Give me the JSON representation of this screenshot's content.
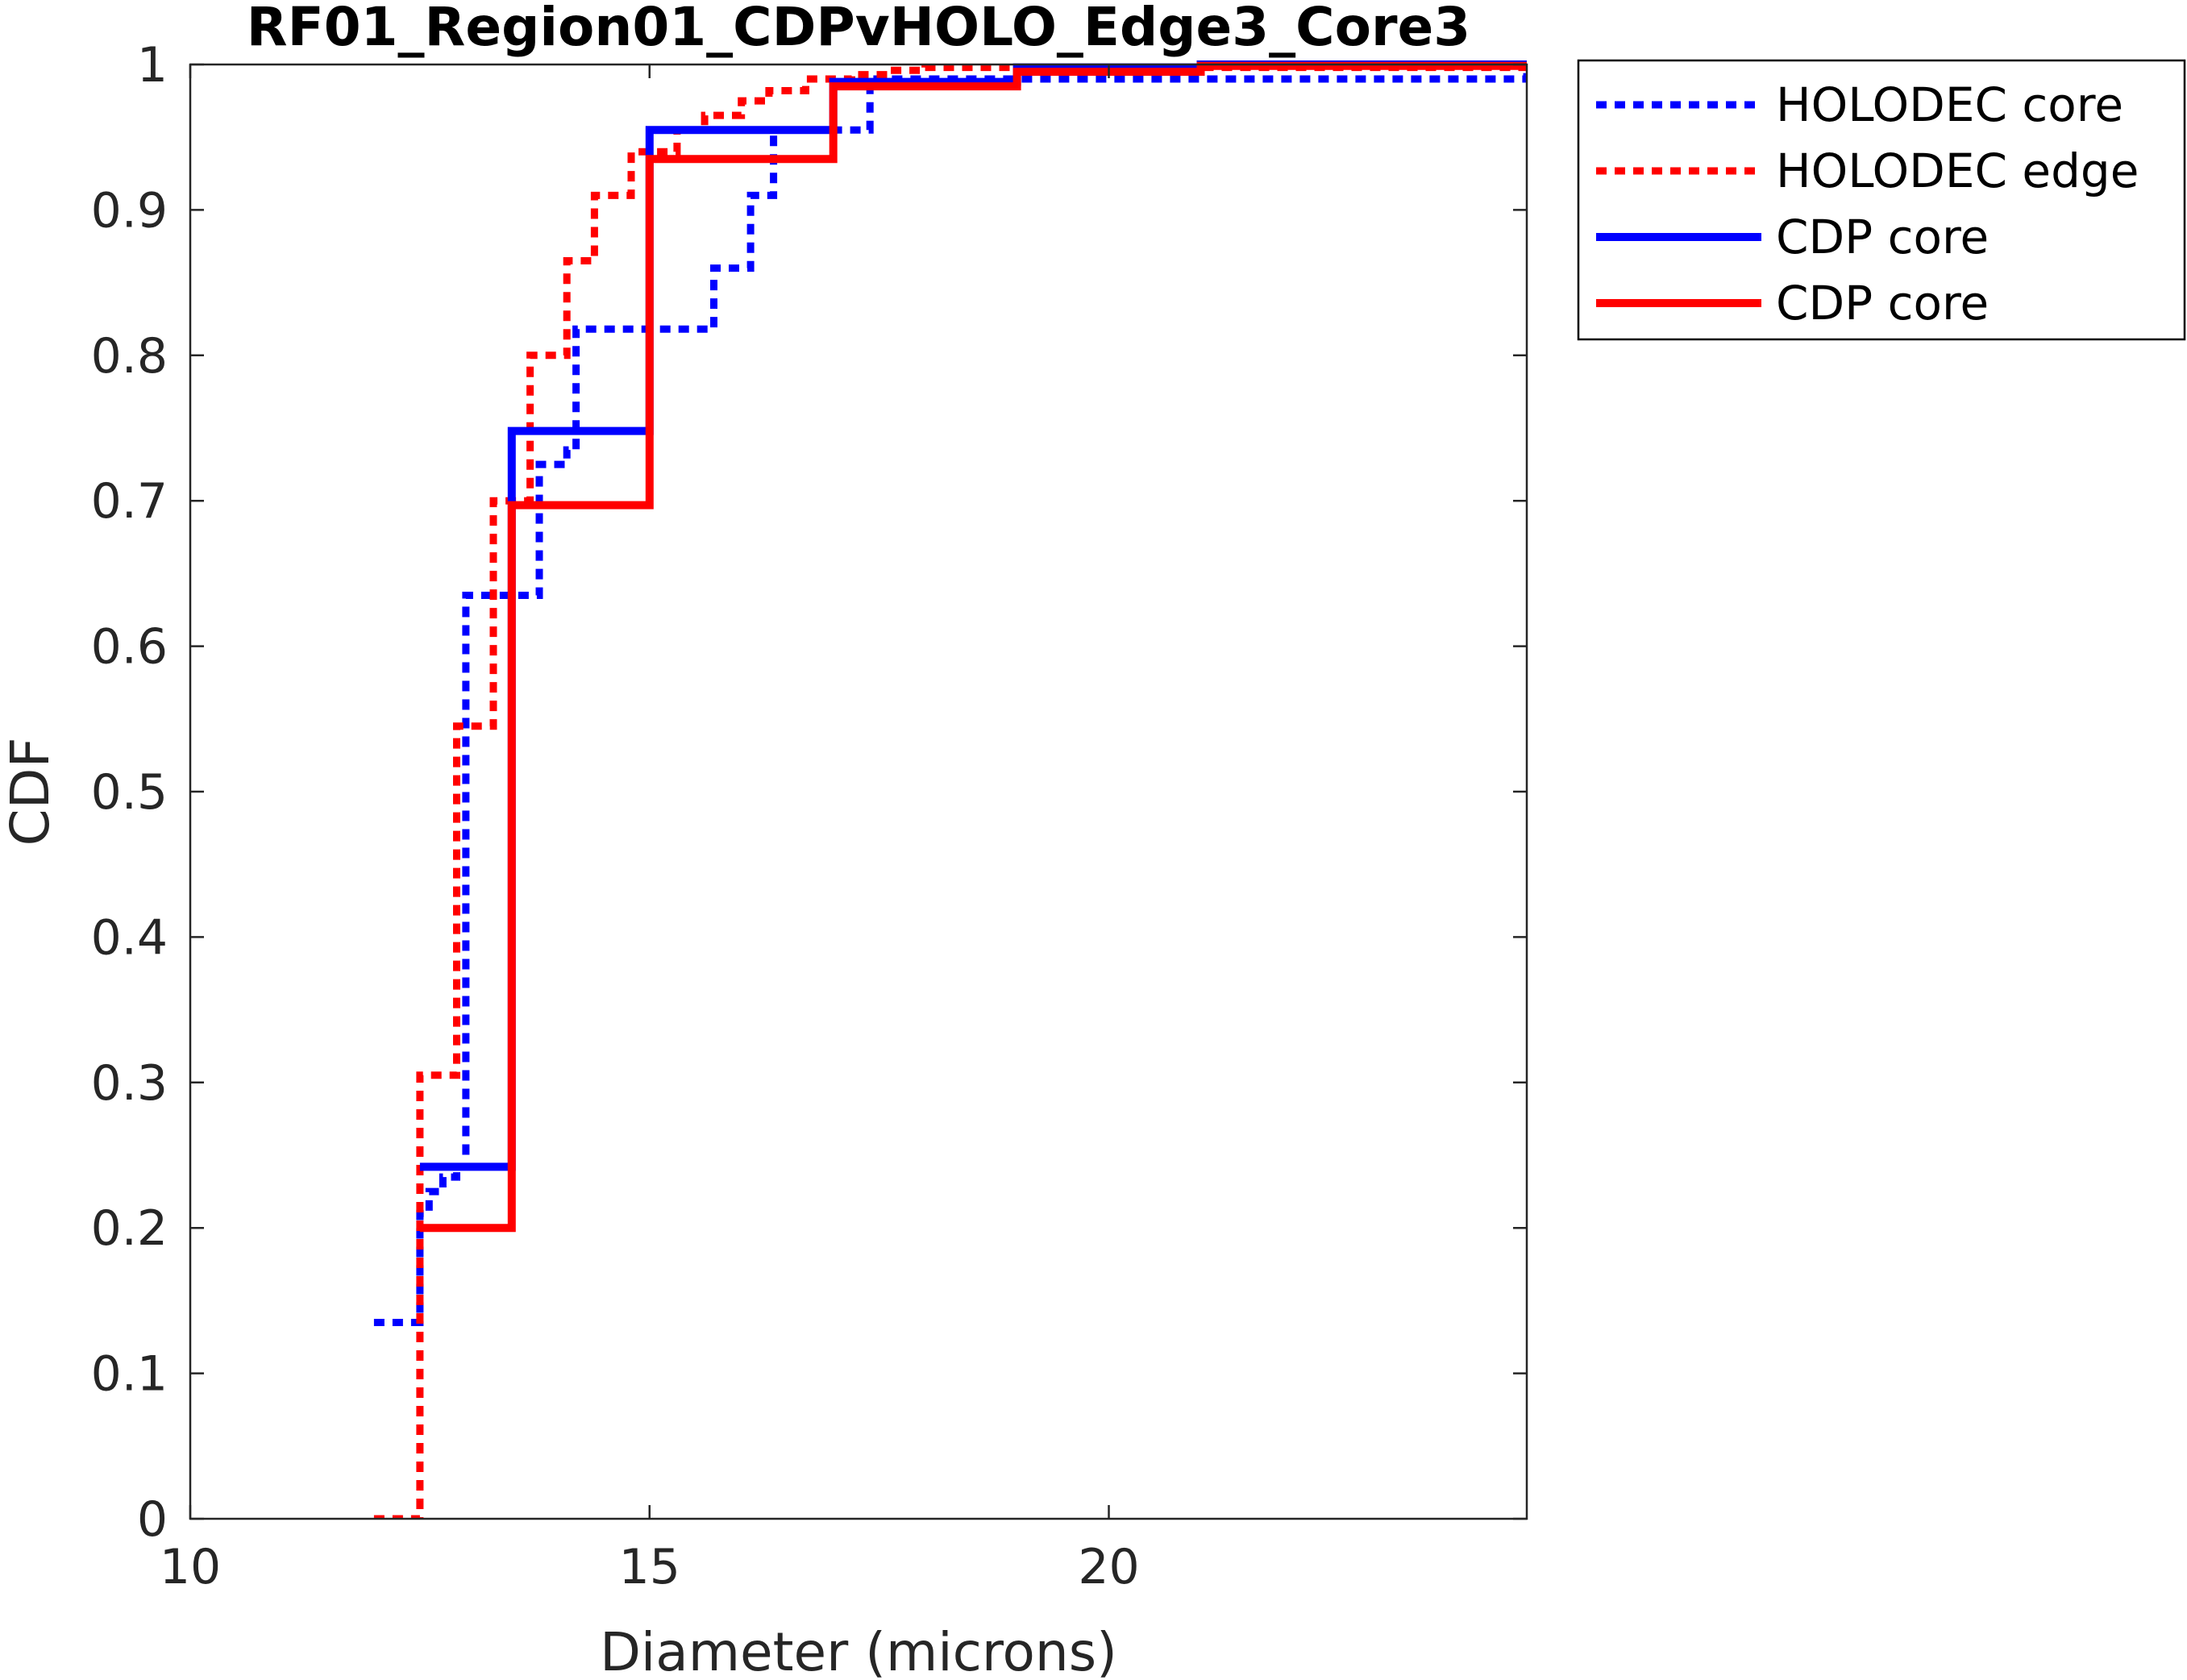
{
  "chart_data": {
    "type": "line",
    "title": "RF01_Region01_CDPvHOLO_Edge3_Core3",
    "xlabel": "Diameter (microns)",
    "ylabel": "CDF",
    "xlim": [
      10,
      24.55
    ],
    "ylim": [
      0,
      1
    ],
    "xticks": [
      "10",
      "15",
      "20"
    ],
    "xtick_values": [
      10,
      15,
      20
    ],
    "yticks": [
      "0",
      "0.1",
      "0.2",
      "0.3",
      "0.4",
      "0.5",
      "0.6",
      "0.7",
      "0.8",
      "0.9",
      "1"
    ],
    "ytick_values": [
      0,
      0.1,
      0.2,
      0.3,
      0.4,
      0.5,
      0.6,
      0.7,
      0.8,
      0.9,
      1
    ],
    "grid": false,
    "legend_position": "outside-top-right",
    "series": [
      {
        "name": "HOLODEC core",
        "color": "#0000ff",
        "style": "dotted",
        "step": true,
        "x": [
          12.0,
          12.5,
          12.6,
          12.75,
          12.9,
          13.0,
          13.7,
          13.8,
          14.1,
          14.2,
          15.5,
          15.7,
          15.9,
          16.1,
          16.35,
          17.2,
          17.4,
          24.55
        ],
        "y": [
          0.135,
          0.21,
          0.225,
          0.235,
          0.242,
          0.635,
          0.635,
          0.725,
          0.735,
          0.818,
          0.818,
          0.86,
          0.86,
          0.91,
          0.955,
          0.955,
          0.99,
          1.0
        ]
      },
      {
        "name": "HOLODEC edge",
        "color": "#ff0000",
        "style": "dotted",
        "step": true,
        "x": [
          12.0,
          12.5,
          12.9,
          13.3,
          13.7,
          14.1,
          14.4,
          14.8,
          15.3,
          15.6,
          16.0,
          16.3,
          16.7,
          17.2,
          17.6,
          18.0,
          24.55
        ],
        "y": [
          0.0,
          0.305,
          0.545,
          0.7,
          0.8,
          0.865,
          0.91,
          0.94,
          0.955,
          0.965,
          0.975,
          0.982,
          0.99,
          0.993,
          0.996,
          0.998,
          1.0
        ]
      },
      {
        "name": "CDP core",
        "color": "#0000ff",
        "style": "solid",
        "step": true,
        "x": [
          12.5,
          13.5,
          15.0,
          17.0,
          19.0,
          21.0,
          24.55
        ],
        "y": [
          0.242,
          0.748,
          0.955,
          0.988,
          0.998,
          1.0,
          1.0
        ]
      },
      {
        "name": "CDP core",
        "color": "#ff0000",
        "style": "solid",
        "step": true,
        "x": [
          12.5,
          13.5,
          15.0,
          17.0,
          19.0,
          21.0,
          24.55
        ],
        "y": [
          0.2,
          0.697,
          0.935,
          0.985,
          0.995,
          0.999,
          1.0
        ]
      }
    ]
  }
}
